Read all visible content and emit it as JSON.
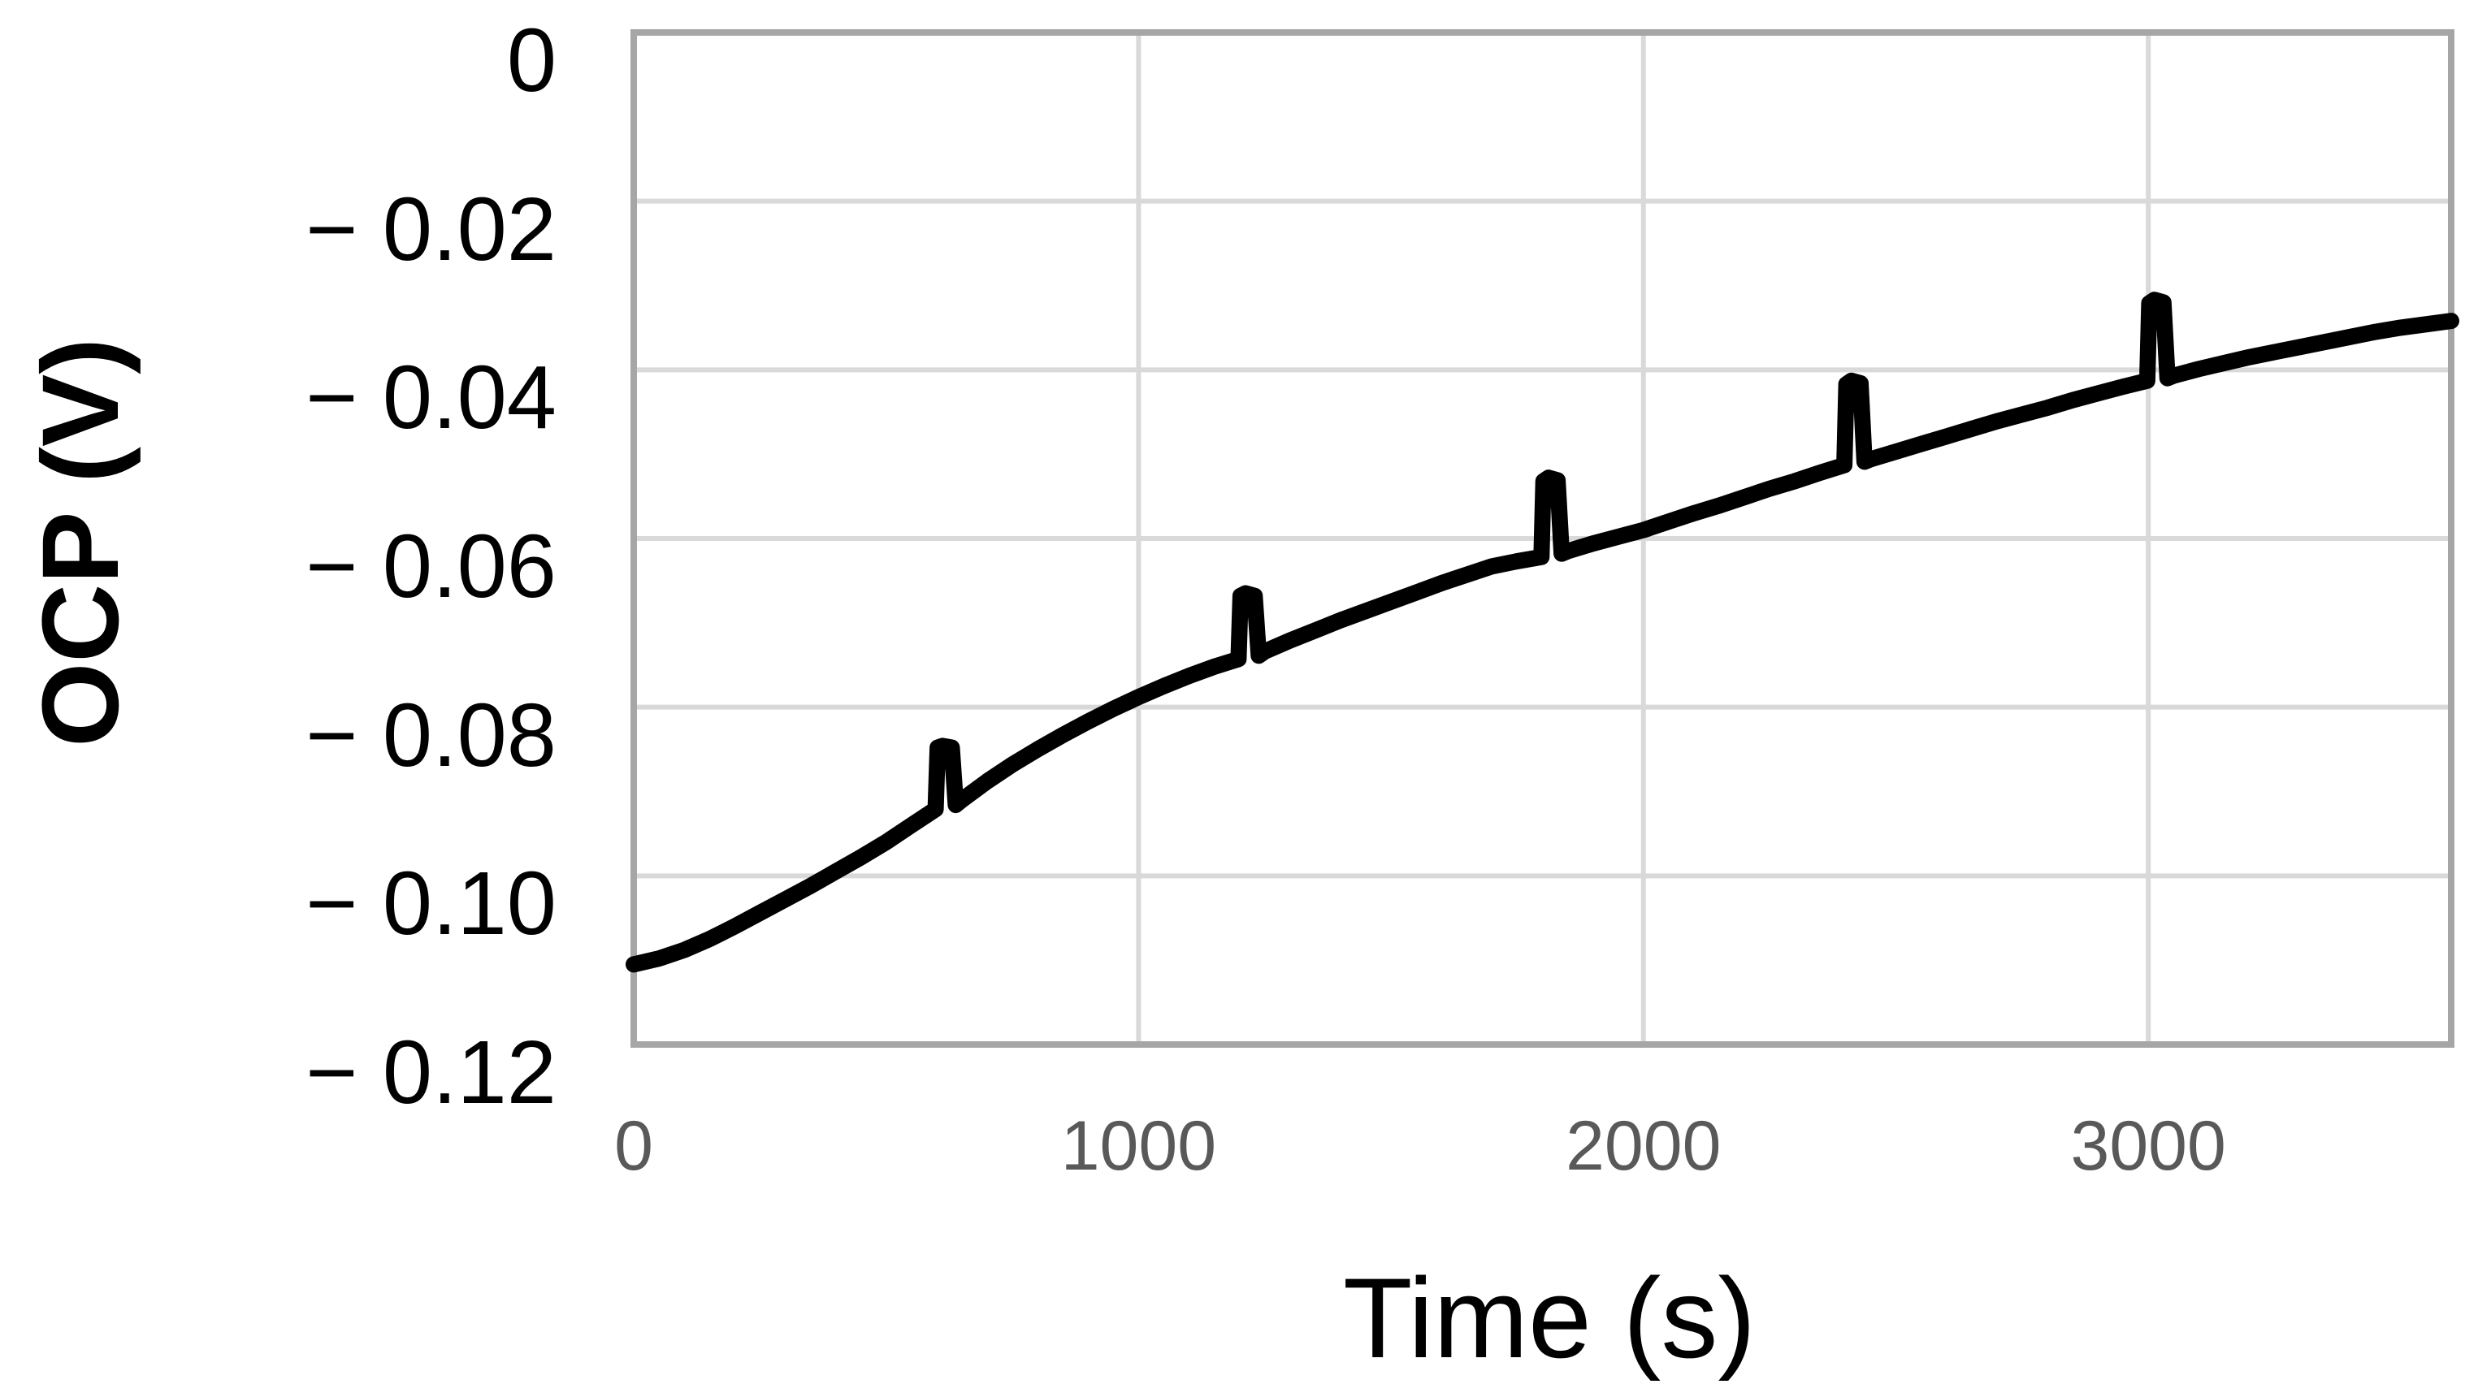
{
  "styles": {
    "background": "#ffffff",
    "line_color": "#000000",
    "grid_color": "#d9d9d9",
    "plot_border_color": "#a6a6a6",
    "x_tick_label_color": "#595959",
    "y_tick_label_color": "#000000"
  },
  "chart_data": {
    "type": "line",
    "title": "",
    "xlabel": "Time (s)",
    "ylabel": "OCP (V)",
    "xlim": [
      0,
      3600
    ],
    "ylim": [
      -0.12,
      0
    ],
    "grid": true,
    "legend_position": "none",
    "xticks": [
      {
        "value": 0,
        "label": "0"
      },
      {
        "value": 1000,
        "label": "1000"
      },
      {
        "value": 2000,
        "label": "2000"
      },
      {
        "value": 3000,
        "label": "3000"
      }
    ],
    "yticks": [
      {
        "value": 0,
        "label": "0"
      },
      {
        "value": -0.02,
        "label": "− 0.02"
      },
      {
        "value": -0.04,
        "label": "− 0.04"
      },
      {
        "value": -0.06,
        "label": "− 0.06"
      },
      {
        "value": -0.08,
        "label": "− 0.08"
      },
      {
        "value": -0.1,
        "label": "− 0.10"
      },
      {
        "value": -0.12,
        "label": "− 0.12"
      }
    ],
    "spikes": {
      "times_s": [
        600,
        1200,
        1800,
        2400,
        3000
      ],
      "baseline_V": [
        -0.092,
        -0.074,
        -0.062,
        -0.051,
        -0.041
      ],
      "peak_V": [
        -0.085,
        -0.067,
        -0.053,
        -0.041,
        -0.032
      ],
      "interval_s": 600
    },
    "series": [
      {
        "name": "OCP",
        "color": "#000000",
        "stroke_width_px": 20,
        "points": [
          [
            0,
            -0.1105
          ],
          [
            50,
            -0.1098
          ],
          [
            100,
            -0.1088
          ],
          [
            150,
            -0.1075
          ],
          [
            200,
            -0.106
          ],
          [
            250,
            -0.1044
          ],
          [
            300,
            -0.1028
          ],
          [
            350,
            -0.1012
          ],
          [
            400,
            -0.0995
          ],
          [
            450,
            -0.0978
          ],
          [
            500,
            -0.096
          ],
          [
            550,
            -0.094
          ],
          [
            598,
            -0.0921
          ],
          [
            602,
            -0.0848
          ],
          [
            612,
            -0.0846
          ],
          [
            630,
            -0.0848
          ],
          [
            638,
            -0.0916
          ],
          [
            650,
            -0.091
          ],
          [
            700,
            -0.0888
          ],
          [
            750,
            -0.0868
          ],
          [
            800,
            -0.085
          ],
          [
            850,
            -0.0833
          ],
          [
            900,
            -0.0817
          ],
          [
            950,
            -0.0802
          ],
          [
            1000,
            -0.0788
          ],
          [
            1050,
            -0.0775
          ],
          [
            1100,
            -0.0763
          ],
          [
            1150,
            -0.0752
          ],
          [
            1198,
            -0.0743
          ],
          [
            1202,
            -0.0668
          ],
          [
            1212,
            -0.0665
          ],
          [
            1230,
            -0.0668
          ],
          [
            1238,
            -0.0739
          ],
          [
            1250,
            -0.0734
          ],
          [
            1300,
            -0.0721
          ],
          [
            1350,
            -0.0709
          ],
          [
            1400,
            -0.0697
          ],
          [
            1450,
            -0.0686
          ],
          [
            1500,
            -0.0675
          ],
          [
            1550,
            -0.0664
          ],
          [
            1600,
            -0.0653
          ],
          [
            1650,
            -0.0643
          ],
          [
            1700,
            -0.0633
          ],
          [
            1750,
            -0.0627
          ],
          [
            1798,
            -0.0622
          ],
          [
            1802,
            -0.0532
          ],
          [
            1812,
            -0.0528
          ],
          [
            1830,
            -0.0531
          ],
          [
            1838,
            -0.0618
          ],
          [
            1850,
            -0.0615
          ],
          [
            1900,
            -0.0606
          ],
          [
            1950,
            -0.0598
          ],
          [
            2000,
            -0.059
          ],
          [
            2050,
            -0.058
          ],
          [
            2100,
            -0.057
          ],
          [
            2150,
            -0.0561
          ],
          [
            2200,
            -0.0551
          ],
          [
            2250,
            -0.0541
          ],
          [
            2300,
            -0.0532
          ],
          [
            2350,
            -0.0522
          ],
          [
            2398,
            -0.0513
          ],
          [
            2402,
            -0.0417
          ],
          [
            2412,
            -0.0413
          ],
          [
            2430,
            -0.0416
          ],
          [
            2438,
            -0.0509
          ],
          [
            2450,
            -0.0506
          ],
          [
            2500,
            -0.0497
          ],
          [
            2550,
            -0.0488
          ],
          [
            2600,
            -0.0479
          ],
          [
            2650,
            -0.047
          ],
          [
            2700,
            -0.0461
          ],
          [
            2750,
            -0.0453
          ],
          [
            2800,
            -0.0445
          ],
          [
            2850,
            -0.0436
          ],
          [
            2900,
            -0.0428
          ],
          [
            2950,
            -0.042
          ],
          [
            2998,
            -0.0413
          ],
          [
            3002,
            -0.0321
          ],
          [
            3012,
            -0.0317
          ],
          [
            3030,
            -0.032
          ],
          [
            3038,
            -0.041
          ],
          [
            3050,
            -0.0407
          ],
          [
            3100,
            -0.0399
          ],
          [
            3150,
            -0.0392
          ],
          [
            3200,
            -0.0385
          ],
          [
            3250,
            -0.0379
          ],
          [
            3300,
            -0.0373
          ],
          [
            3350,
            -0.0367
          ],
          [
            3400,
            -0.0361
          ],
          [
            3450,
            -0.0355
          ],
          [
            3500,
            -0.035
          ],
          [
            3550,
            -0.0346
          ],
          [
            3600,
            -0.0342
          ]
        ]
      }
    ]
  }
}
